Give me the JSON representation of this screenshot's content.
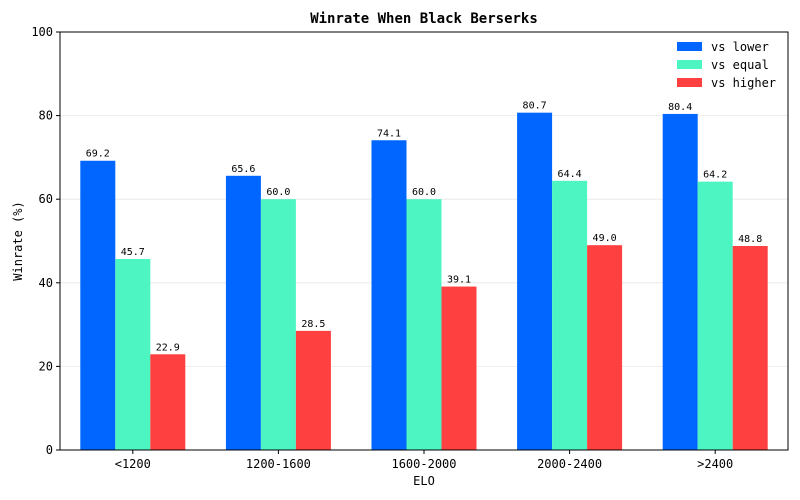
{
  "chart_data": {
    "type": "bar",
    "title": "Winrate When Black Berserks",
    "xlabel": "ELO",
    "ylabel": "Winrate (%)",
    "categories": [
      "<1200",
      "1200-1600",
      "1600-2000",
      "2000-2400",
      ">2400"
    ],
    "series": [
      {
        "name": "vs lower",
        "color": "#0066ff",
        "values": [
          69.2,
          65.6,
          74.1,
          80.7,
          80.4
        ]
      },
      {
        "name": "vs equal",
        "color": "#4df5c3",
        "values": [
          45.7,
          60.0,
          60.0,
          64.4,
          64.2
        ]
      },
      {
        "name": "vs higher",
        "color": "#ff4040",
        "values": [
          22.9,
          28.5,
          39.1,
          49.0,
          48.8
        ]
      }
    ],
    "ylim": [
      0,
      100
    ],
    "yticks": [
      0,
      20,
      40,
      60,
      80,
      100
    ],
    "grid": true,
    "legend": "top-right"
  }
}
